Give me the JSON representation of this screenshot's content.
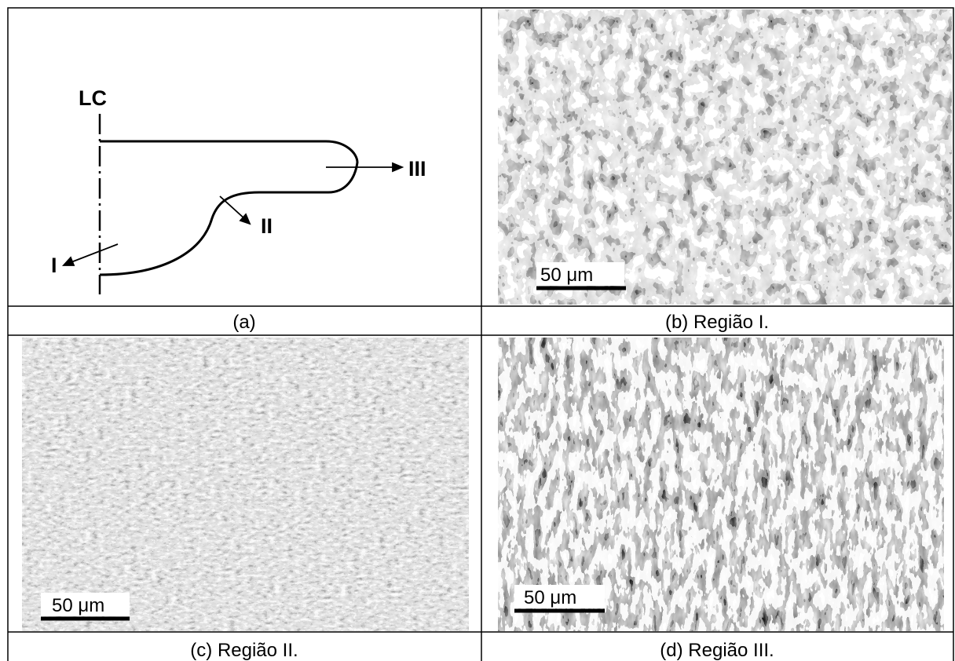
{
  "diagram": {
    "centerline_label": "LC",
    "region_labels": [
      "I",
      "II",
      "III"
    ]
  },
  "panels": [
    {
      "caption": "(a)"
    },
    {
      "caption": "(b) Região I.",
      "scale_bar": "50 μm"
    },
    {
      "caption": "(c) Região II.",
      "scale_bar": "50 μm"
    },
    {
      "caption": "(d) Região III.",
      "scale_bar": "50 μm"
    }
  ]
}
